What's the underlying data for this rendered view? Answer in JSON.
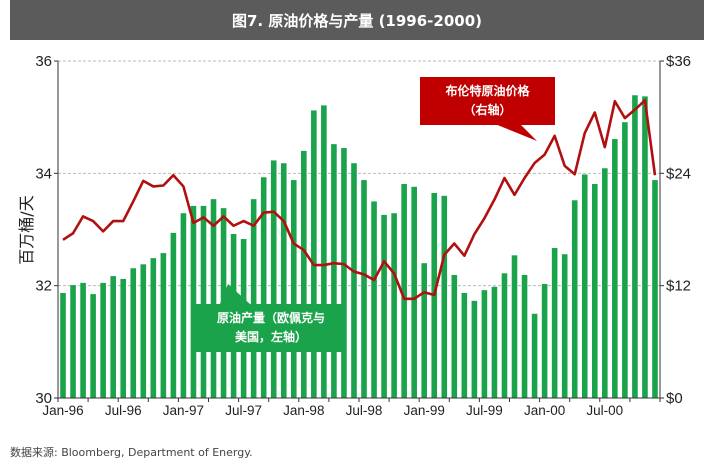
{
  "chart_data": {
    "type": "bar+line",
    "title": "图7. 原油价格与产量 (1996-2000)",
    "ylabel": "百万桶/天",
    "ylim": [
      30,
      36
    ],
    "yticks": [
      "30",
      "32",
      "34",
      "36"
    ],
    "y2lim": [
      0,
      36
    ],
    "y2ticks": [
      "$0",
      "$12",
      "$24",
      "$36"
    ],
    "xtick_labels": [
      "Jan-96",
      "Jul-96",
      "Jan-97",
      "Jul-97",
      "Jan-98",
      "Jul-98",
      "Jan-99",
      "Jul-99",
      "Jan-00",
      "Jul-00"
    ],
    "grid": "horizontal dashed",
    "series": [
      {
        "name": "原油产量（欧佩克与美国，左轴）",
        "type": "bar",
        "axis": "left",
        "color": "#1aa34a",
        "values": [
          31.87,
          32.01,
          32.05,
          31.85,
          32.05,
          32.17,
          32.12,
          32.31,
          32.38,
          32.49,
          32.58,
          32.94,
          33.29,
          33.42,
          33.42,
          33.54,
          33.38,
          32.92,
          32.83,
          33.54,
          33.93,
          34.23,
          34.18,
          33.88,
          34.4,
          35.12,
          35.21,
          34.52,
          34.45,
          34.18,
          33.88,
          33.5,
          33.26,
          33.29,
          33.81,
          33.76,
          32.4,
          33.65,
          33.6,
          32.19,
          31.87,
          31.73,
          31.92,
          31.98,
          32.22,
          32.54,
          32.19,
          31.5,
          32.03,
          32.67,
          32.56,
          33.52,
          33.98,
          33.81,
          34.09,
          34.61,
          34.91,
          35.39,
          35.37,
          33.88
        ]
      },
      {
        "name": "布伦特原油价格（右轴）",
        "type": "line",
        "axis": "right",
        "color": "#b01010",
        "values": [
          16.9,
          17.6,
          19.4,
          18.9,
          17.8,
          18.9,
          18.9,
          21.0,
          23.2,
          22.6,
          22.7,
          23.8,
          22.6,
          18.7,
          19.3,
          18.4,
          19.4,
          18.4,
          18.9,
          18.4,
          19.8,
          19.9,
          18.9,
          16.5,
          15.8,
          14.2,
          14.2,
          14.4,
          14.3,
          13.5,
          13.2,
          12.6,
          14.6,
          13.3,
          10.6,
          10.6,
          11.3,
          11.0,
          15.3,
          16.5,
          15.2,
          17.5,
          19.2,
          21.2,
          23.5,
          21.7,
          23.5,
          25.1,
          26.0,
          28.0,
          24.8,
          23.9,
          28.3,
          30.5,
          26.8,
          31.7,
          29.9,
          30.8,
          31.8,
          23.8
        ]
      }
    ],
    "annotations": {
      "price_line1": "布伦特原油价格",
      "price_line2": "（右轴）",
      "prod_line1": "原油产量（欧佩克与",
      "prod_line2": "美国，左轴）"
    }
  },
  "source": "数据来源: Bloomberg, Department of Energy."
}
